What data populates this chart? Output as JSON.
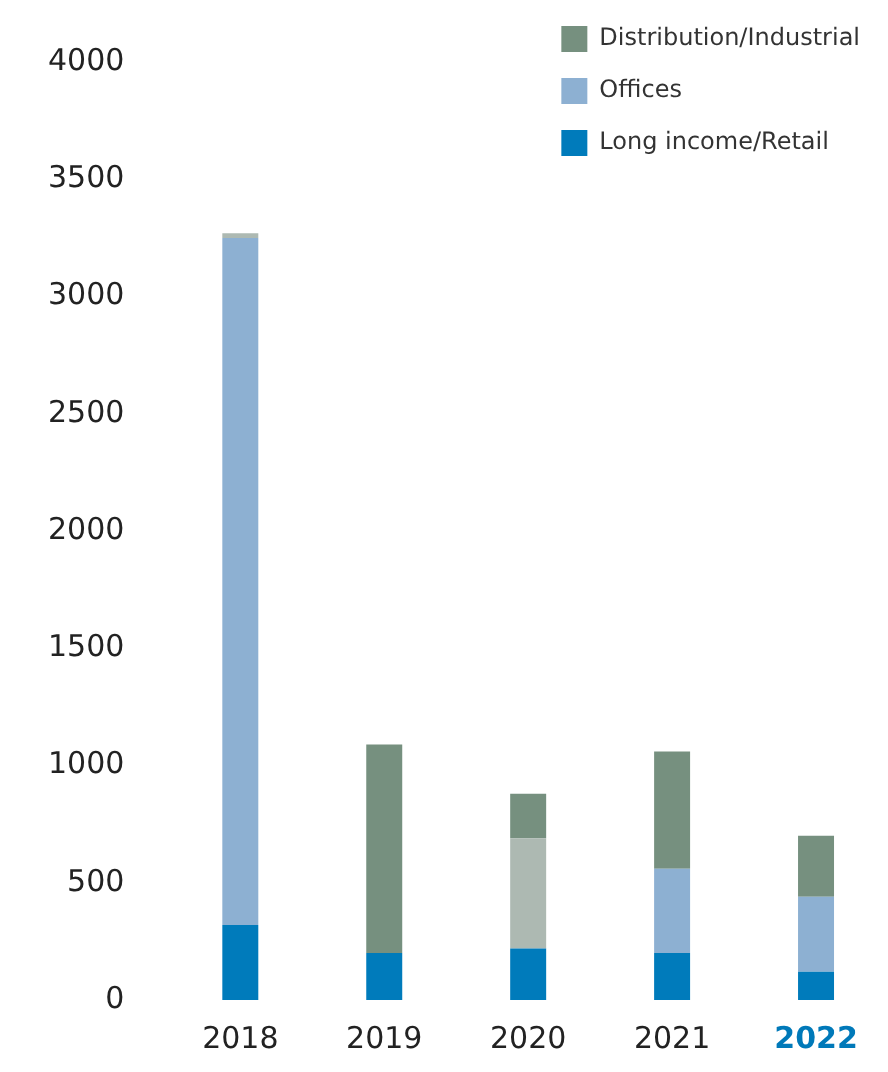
{
  "chart_data": {
    "type": "bar",
    "stacked": true,
    "categories": [
      "2018",
      "2019",
      "2020",
      "2021",
      "2022"
    ],
    "series": [
      {
        "name": "Long income/Retail",
        "color": "#007bbb",
        "values": [
          320,
          200,
          220,
          200,
          120
        ]
      },
      {
        "name": "Offices",
        "color": "#8db0d2",
        "values": [
          2930,
          0,
          0,
          360,
          320
        ]
      },
      {
        "color": "#adb9b2",
        "values": [
          20,
          0,
          470,
          0,
          0
        ]
      },
      {
        "name": "Distribution/Industrial",
        "color": "#76907f",
        "values": [
          0,
          890,
          190,
          500,
          260
        ]
      }
    ],
    "ylim": [
      0,
      4000
    ],
    "yticks": [
      0,
      500,
      1000,
      1500,
      2000,
      2500,
      3000,
      3500,
      4000
    ],
    "grid": false,
    "legend": "top right"
  }
}
